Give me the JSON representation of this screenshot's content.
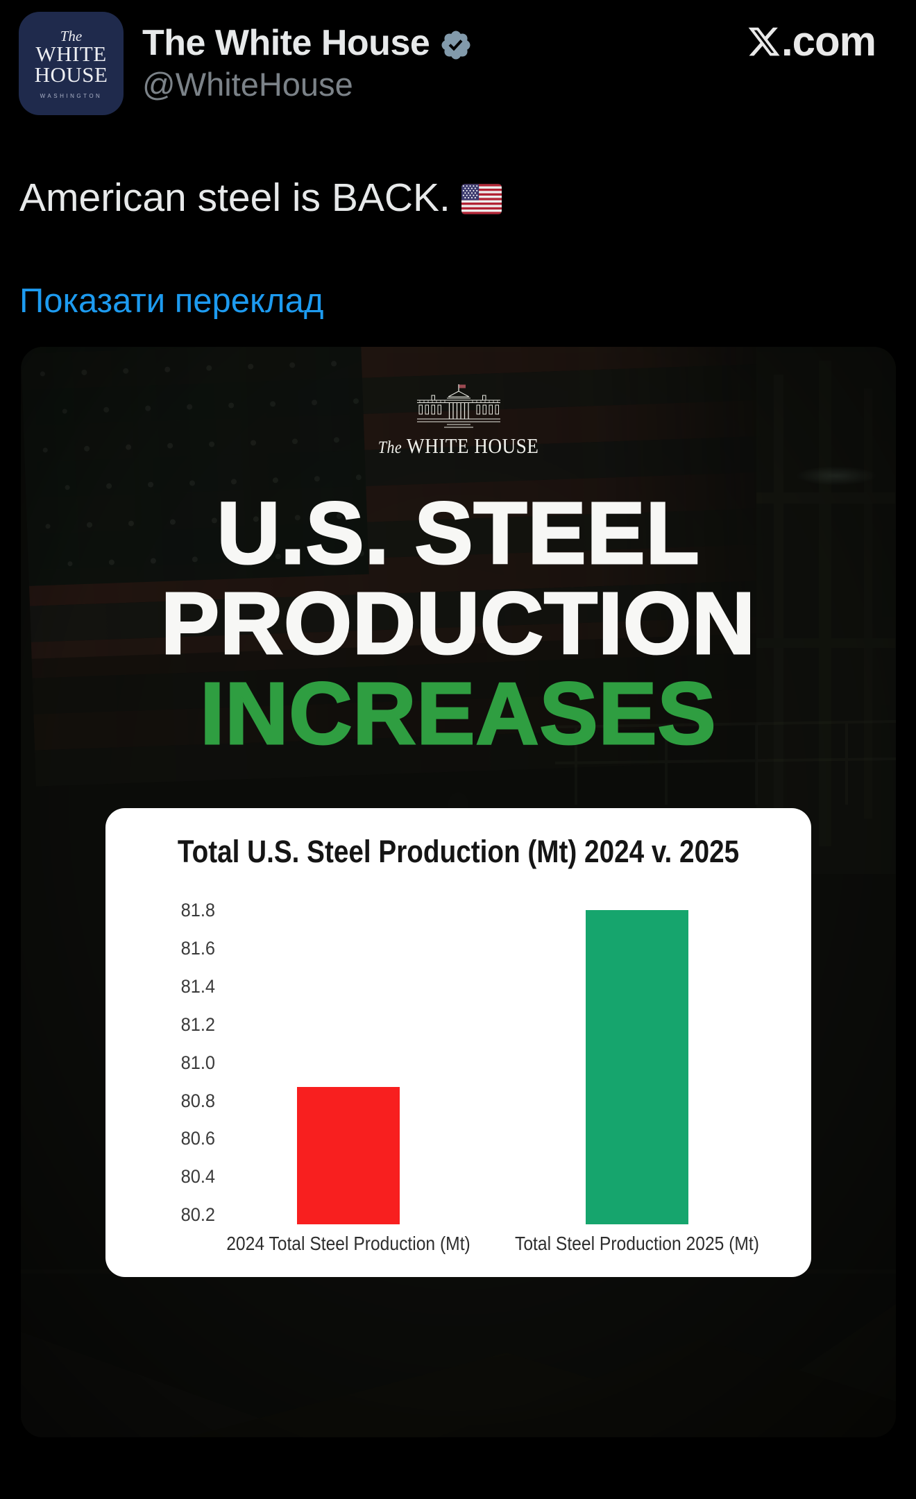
{
  "page": {
    "background": "#000000"
  },
  "header": {
    "display_name": "The White House",
    "handle": "@WhiteHouse",
    "site_suffix": ".com",
    "badge_color": "#829aab",
    "avatar": {
      "line_the": "The",
      "line_white": "WHITE",
      "line_house": "HOUSE",
      "line_city": "WASHINGTON"
    }
  },
  "tweet": {
    "text": "American steel is BACK.",
    "emoji": "us-flag",
    "translate_link": "Показати переклад",
    "link_color": "#1d9bf0"
  },
  "infographic": {
    "logo_the": "The",
    "logo_name": "WHITE HOUSE",
    "headline": [
      "U.S. STEEL",
      "PRODUCTION",
      "INCREASES"
    ],
    "headline_colors": [
      "#f7f7f5",
      "#f7f7f5",
      "#2f9e41"
    ]
  },
  "chart_data": {
    "type": "bar",
    "title": "Total U.S. Steel Production (Mt) 2024 v. 2025",
    "categories": [
      "2024 Total Steel Production (Mt)",
      "Total Steel Production 2025 (Mt)"
    ],
    "values": [
      80.87,
      81.8
    ],
    "bar_colors": [
      "#f81f1f",
      "#16a56d"
    ],
    "ylim": [
      80.15,
      81.8
    ],
    "yticks": [
      81.8,
      81.6,
      81.4,
      81.2,
      81.0,
      80.8,
      80.6,
      80.4,
      80.2
    ],
    "grid": false,
    "legend": false,
    "background": "#ffffff",
    "xlabel": "",
    "ylabel": ""
  }
}
